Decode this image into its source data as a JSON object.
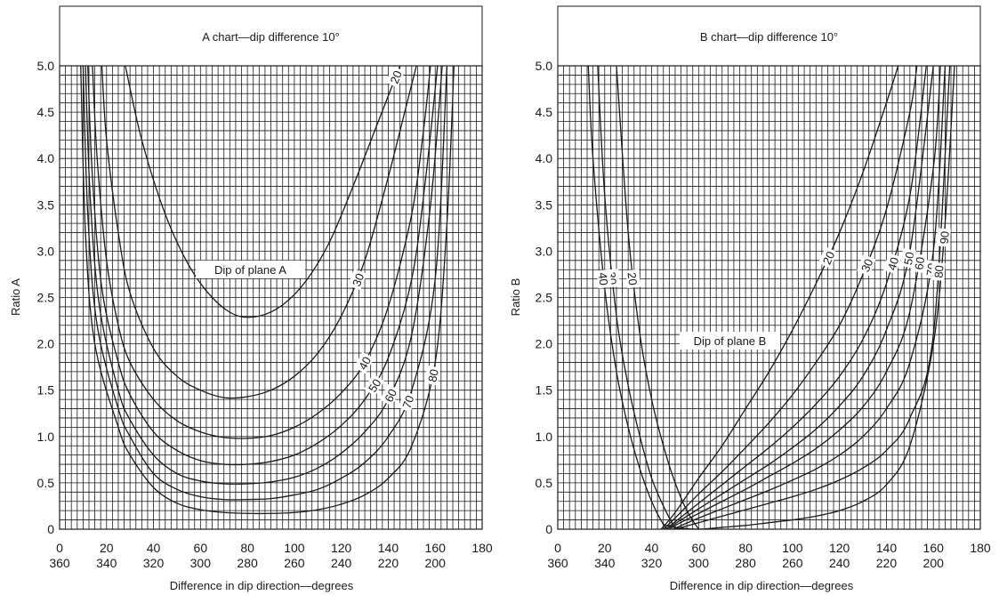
{
  "chart_data": [
    {
      "type": "line",
      "title": "A chart—dip difference 10°",
      "xlabel": "Difference in dip direction—degrees",
      "ylabel": "Ratio A",
      "xlim": [
        0,
        180
      ],
      "ylim": [
        0,
        5.0
      ],
      "x_ticks": [
        0,
        20,
        40,
        60,
        80,
        100,
        120,
        140,
        160,
        180
      ],
      "x_ticks_secondary": [
        "360",
        "340",
        "320",
        "300",
        "280",
        "260",
        "240",
        "220",
        "200"
      ],
      "y_ticks": [
        "0",
        "0.5",
        "1.0",
        "1.5",
        "2.0",
        "2.5",
        "3.0",
        "3.5",
        "4.0",
        "4.5",
        "5.0"
      ],
      "grid": true,
      "annotation": "Dip of plane A",
      "series": [
        {
          "name": "20",
          "x": [
            28,
            35,
            45,
            55,
            65,
            75,
            85,
            95,
            105,
            115,
            125,
            135,
            145
          ],
          "y": [
            5.0,
            4.2,
            3.4,
            2.85,
            2.5,
            2.31,
            2.3,
            2.42,
            2.68,
            3.1,
            3.7,
            4.35,
            5.0
          ]
        },
        {
          "name": "30",
          "x": [
            18,
            20,
            25,
            30,
            40,
            50,
            60,
            70,
            80,
            90,
            100,
            110,
            120,
            130,
            140,
            147,
            152
          ],
          "y": [
            5.0,
            4.2,
            3.2,
            2.55,
            1.95,
            1.65,
            1.5,
            1.42,
            1.43,
            1.5,
            1.65,
            1.9,
            2.3,
            2.9,
            3.8,
            4.5,
            5.0
          ]
        },
        {
          "name": "40",
          "x": [
            14,
            16,
            20,
            25,
            30,
            40,
            50,
            60,
            70,
            80,
            90,
            100,
            110,
            120,
            130,
            140,
            150,
            155,
            158
          ],
          "y": [
            5.0,
            4.0,
            2.9,
            2.2,
            1.8,
            1.4,
            1.17,
            1.05,
            0.99,
            0.98,
            1.01,
            1.1,
            1.25,
            1.47,
            1.8,
            2.4,
            3.4,
            4.3,
            5.0
          ]
        },
        {
          "name": "50",
          "x": [
            12,
            14,
            18,
            25,
            30,
            40,
            50,
            60,
            70,
            80,
            90,
            100,
            110,
            120,
            130,
            140,
            150,
            156,
            161
          ],
          "y": [
            5.0,
            3.8,
            2.6,
            1.8,
            1.45,
            1.05,
            0.85,
            0.74,
            0.7,
            0.7,
            0.73,
            0.8,
            0.93,
            1.12,
            1.4,
            1.85,
            2.7,
            3.8,
            5.0
          ]
        },
        {
          "name": "60",
          "x": [
            11,
            13,
            17,
            25,
            30,
            40,
            50,
            60,
            70,
            80,
            90,
            100,
            110,
            120,
            130,
            140,
            150,
            158,
            163
          ],
          "y": [
            5.0,
            3.6,
            2.4,
            1.5,
            1.18,
            0.8,
            0.6,
            0.52,
            0.49,
            0.49,
            0.51,
            0.56,
            0.66,
            0.82,
            1.05,
            1.4,
            2.1,
            3.5,
            5.0
          ]
        },
        {
          "name": "70",
          "x": [
            10,
            12,
            16,
            25,
            30,
            40,
            50,
            60,
            70,
            80,
            90,
            100,
            110,
            120,
            130,
            140,
            150,
            160,
            165
          ],
          "y": [
            5.0,
            3.4,
            2.2,
            1.3,
            1.0,
            0.6,
            0.43,
            0.35,
            0.32,
            0.32,
            0.33,
            0.37,
            0.43,
            0.55,
            0.72,
            1.0,
            1.5,
            2.7,
            5.0
          ]
        },
        {
          "name": "80",
          "x": [
            9,
            11,
            15,
            25,
            30,
            40,
            50,
            60,
            70,
            80,
            90,
            100,
            110,
            120,
            130,
            140,
            150,
            160,
            165,
            168
          ],
          "y": [
            5.0,
            3.2,
            2.0,
            1.1,
            0.8,
            0.45,
            0.28,
            0.21,
            0.18,
            0.17,
            0.17,
            0.18,
            0.21,
            0.27,
            0.37,
            0.55,
            0.9,
            1.8,
            3.3,
            5.0
          ]
        }
      ]
    },
    {
      "type": "line",
      "title": "B chart—dip difference 10°",
      "xlabel": "Difference in dip direction—degrees",
      "ylabel": "Ratio B",
      "xlim": [
        0,
        180
      ],
      "ylim": [
        0,
        5.0
      ],
      "x_ticks": [
        0,
        20,
        40,
        60,
        80,
        100,
        120,
        140,
        160,
        180
      ],
      "x_ticks_secondary": [
        "360",
        "340",
        "320",
        "300",
        "280",
        "260",
        "240",
        "220",
        "200"
      ],
      "y_ticks": [
        "0",
        "0.5",
        "1.0",
        "1.5",
        "2.0",
        "2.5",
        "3.0",
        "3.5",
        "4.0",
        "4.5",
        "5.0"
      ],
      "grid": true,
      "annotation": "Dip of plane B",
      "series": [
        {
          "name": "20",
          "x": [
            25,
            30,
            35,
            40,
            45,
            50,
            55,
            60
          ],
          "y": [
            5.0,
            3.2,
            2.1,
            1.4,
            0.9,
            0.5,
            0.2,
            0.0
          ]
        },
        {
          "name": "30",
          "x": [
            17,
            20,
            25,
            30,
            35,
            40,
            45,
            50
          ],
          "y": [
            5.0,
            3.6,
            2.3,
            1.55,
            1.0,
            0.55,
            0.25,
            0.0
          ]
        },
        {
          "name": "40",
          "x": [
            13,
            15,
            20,
            25,
            30,
            35,
            40,
            45,
            47
          ],
          "y": [
            5.0,
            4.0,
            2.6,
            1.7,
            1.1,
            0.65,
            0.3,
            0.05,
            0.0
          ]
        },
        {
          "name": "20",
          "x": [
            44,
            50,
            60,
            70,
            80,
            90,
            100,
            110,
            120,
            130,
            140,
            145
          ],
          "y": [
            0.0,
            0.18,
            0.55,
            0.9,
            1.3,
            1.7,
            2.15,
            2.65,
            3.2,
            3.85,
            4.6,
            5.0
          ]
        },
        {
          "name": "30",
          "x": [
            45,
            50,
            60,
            70,
            80,
            90,
            100,
            110,
            120,
            130,
            140,
            150,
            153
          ],
          "y": [
            0.0,
            0.12,
            0.38,
            0.62,
            0.88,
            1.15,
            1.45,
            1.8,
            2.2,
            2.75,
            3.45,
            4.5,
            5.0
          ]
        },
        {
          "name": "40",
          "x": [
            46,
            50,
            60,
            70,
            80,
            90,
            100,
            110,
            120,
            130,
            140,
            150,
            157
          ],
          "y": [
            0.0,
            0.08,
            0.28,
            0.48,
            0.68,
            0.88,
            1.1,
            1.35,
            1.65,
            2.05,
            2.65,
            3.6,
            5.0
          ]
        },
        {
          "name": "50",
          "x": [
            47,
            50,
            60,
            70,
            80,
            90,
            100,
            110,
            120,
            130,
            140,
            150,
            160
          ],
          "y": [
            0.0,
            0.06,
            0.22,
            0.38,
            0.54,
            0.7,
            0.88,
            1.08,
            1.33,
            1.65,
            2.15,
            3.0,
            5.0
          ]
        },
        {
          "name": "60",
          "x": [
            48,
            50,
            60,
            70,
            80,
            90,
            100,
            110,
            120,
            130,
            140,
            150,
            160,
            163
          ],
          "y": [
            0.0,
            0.04,
            0.17,
            0.3,
            0.43,
            0.57,
            0.71,
            0.87,
            1.07,
            1.32,
            1.7,
            2.35,
            3.9,
            5.0
          ]
        },
        {
          "name": "70",
          "x": [
            49,
            60,
            70,
            80,
            90,
            100,
            110,
            120,
            130,
            140,
            150,
            160,
            165
          ],
          "y": [
            0.0,
            0.12,
            0.22,
            0.32,
            0.42,
            0.53,
            0.65,
            0.8,
            1.0,
            1.3,
            1.8,
            3.0,
            5.0
          ]
        },
        {
          "name": "80",
          "x": [
            50,
            60,
            70,
            80,
            90,
            100,
            110,
            120,
            130,
            140,
            150,
            160,
            167
          ],
          "y": [
            0.0,
            0.07,
            0.14,
            0.21,
            0.28,
            0.35,
            0.43,
            0.53,
            0.66,
            0.85,
            1.2,
            2.1,
            5.0
          ]
        },
        {
          "name": "90",
          "x": [
            45,
            50,
            60,
            70,
            80,
            90,
            100,
            110,
            120,
            130,
            140,
            150,
            160,
            165,
            169
          ],
          "y": [
            0.05,
            0.02,
            0.0,
            0.02,
            0.04,
            0.07,
            0.1,
            0.14,
            0.2,
            0.3,
            0.48,
            0.9,
            2.0,
            3.3,
            5.0
          ]
        }
      ]
    }
  ]
}
